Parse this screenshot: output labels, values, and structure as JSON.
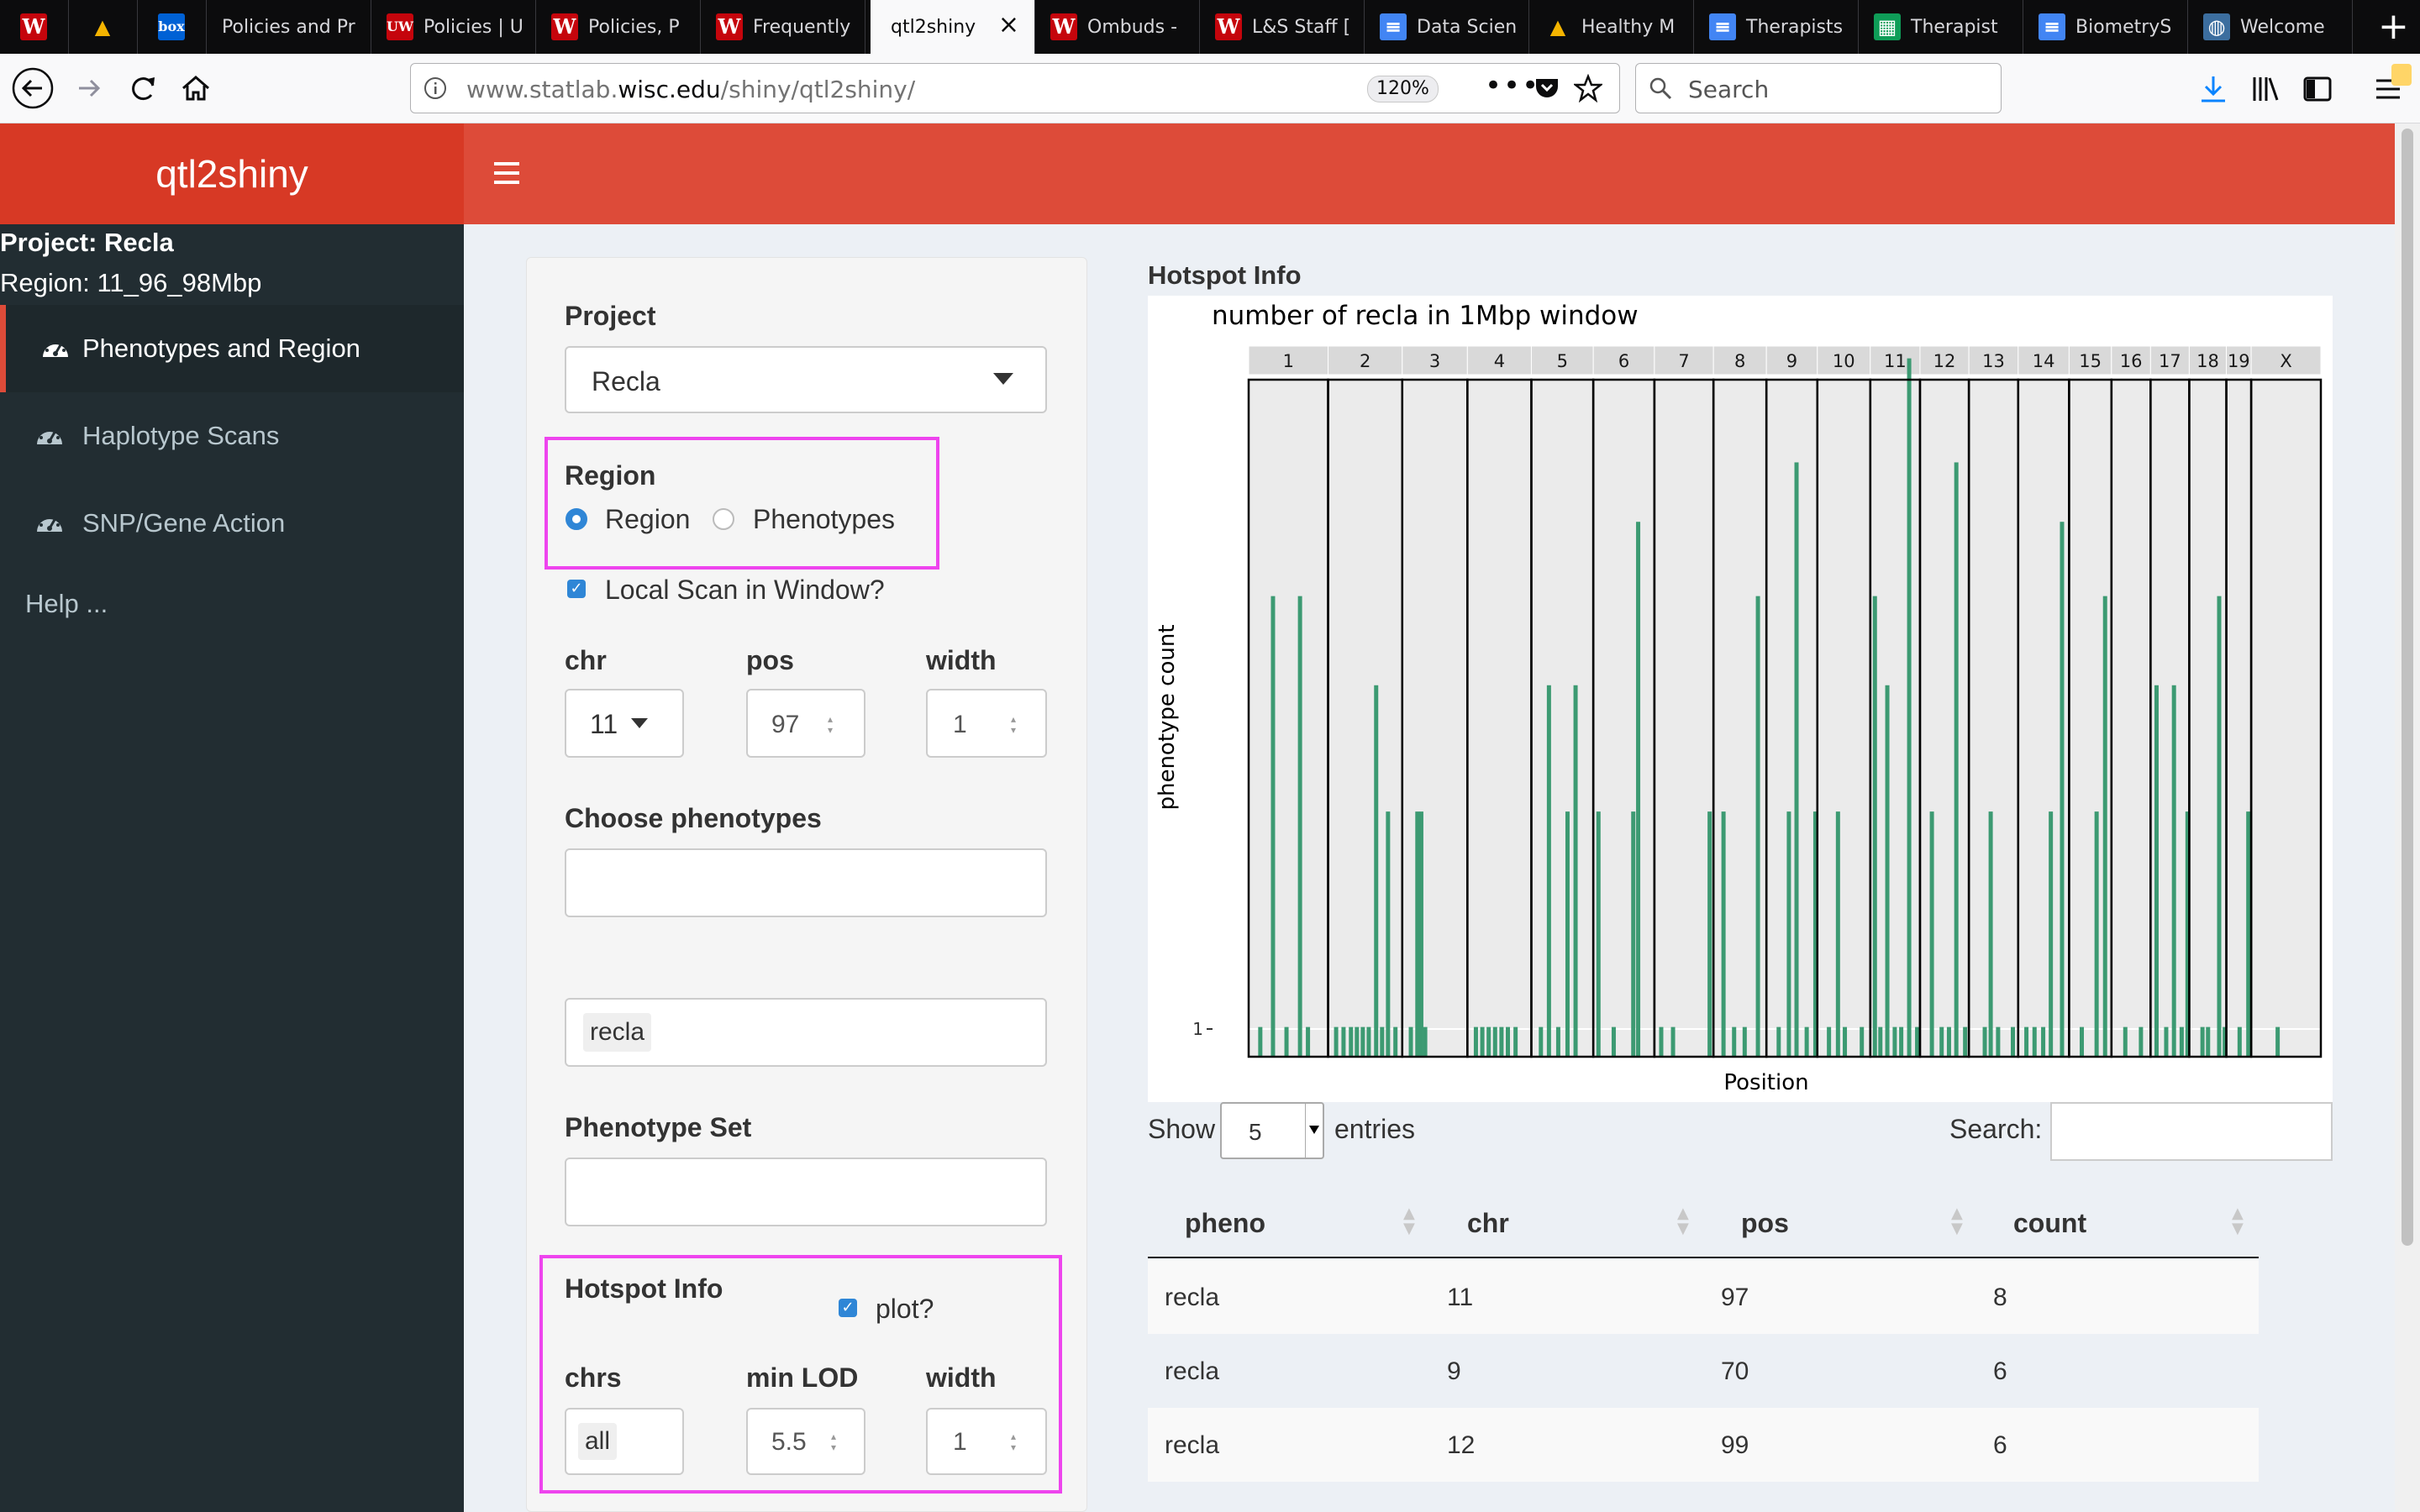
{
  "browser": {
    "tabs": [
      {
        "label": "",
        "fav": "W",
        "favbg": "#c5050c"
      },
      {
        "label": "",
        "fav": "▲",
        "favbg": "#0c0c0d",
        "favcolor": "#f4b400"
      },
      {
        "label": "",
        "fav": "box",
        "favbg": "#0061d5"
      },
      {
        "label": "Policies and Pr",
        "fav": "",
        "favbg": ""
      },
      {
        "label": "Policies | U",
        "fav": "UW",
        "favbg": "#c5050c"
      },
      {
        "label": "Policies, P",
        "fav": "W",
        "favbg": "#c5050c"
      },
      {
        "label": "Frequently",
        "fav": "W",
        "favbg": "#c5050c"
      },
      {
        "label": "qtl2shiny",
        "fav": "",
        "favbg": "",
        "active": true
      },
      {
        "label": "Ombuds -",
        "fav": "W",
        "favbg": "#c5050c"
      },
      {
        "label": "L&S Staff [",
        "fav": "W",
        "favbg": "#c5050c"
      },
      {
        "label": "Data Scien",
        "fav": "≡",
        "favbg": "#4285f4"
      },
      {
        "label": "Healthy M",
        "fav": "▲",
        "favbg": "#0c0c0d",
        "favcolor": "#f4b400"
      },
      {
        "label": "Therapists",
        "fav": "≡",
        "favbg": "#4285f4"
      },
      {
        "label": "Therapist",
        "fav": "▦",
        "favbg": "#0f9d58"
      },
      {
        "label": "BiometryS",
        "fav": "≡",
        "favbg": "#4285f4"
      },
      {
        "label": "Welcome",
        "fav": "◍",
        "favbg": "#3c6e9f"
      }
    ],
    "url_prefix": "www.statlab.",
    "url_domain": "wisc.edu",
    "url_path": "/shiny/qtl2shiny/",
    "zoom": "120%",
    "search_placeholder": "Search"
  },
  "app": {
    "logo": "qtl2shiny",
    "project_line": "Project: Recla",
    "region_line": "Region: 11_96_98Mbp",
    "menu": [
      {
        "label": "Phenotypes and Region",
        "active": true
      },
      {
        "label": "Haplotype Scans",
        "active": false
      },
      {
        "label": "SNP/Gene Action",
        "active": false
      }
    ],
    "help": "Help ..."
  },
  "controls": {
    "project_label": "Project",
    "project_value": "Recla",
    "region_label": "Region",
    "region_options": [
      {
        "label": "Region",
        "checked": true
      },
      {
        "label": "Phenotypes",
        "checked": false
      }
    ],
    "local_scan_label": "Local Scan in Window?",
    "chr_label": "chr",
    "chr_value": "11",
    "pos_label": "pos",
    "pos_value": "97",
    "width_label": "width",
    "width_value": "1",
    "choose_pheno_label": "Choose phenotypes",
    "pheno_tag": "recla",
    "pheno_set_label": "Phenotype Set",
    "hotspot_label": "Hotspot Info",
    "plot_label": "plot?",
    "chrs_label": "chrs",
    "chrs_value": "all",
    "minlod_label": "min LOD",
    "minlod_value": "5.5",
    "hwidth_label": "width",
    "hwidth_value": "1"
  },
  "hotspot": {
    "heading": "Hotspot Info",
    "show_label": "Show",
    "show_value": "5",
    "entries_label": "entries",
    "search_label": "Search:",
    "columns": [
      "pheno",
      "chr",
      "pos",
      "count"
    ],
    "rows": [
      [
        "recla",
        "11",
        "97",
        "8"
      ],
      [
        "recla",
        "9",
        "70",
        "6"
      ],
      [
        "recla",
        "12",
        "99",
        "6"
      ]
    ]
  },
  "chart_data": {
    "type": "bar",
    "title": "number of recla in 1Mbp window",
    "xlabel": "Position",
    "ylabel": "phenotype count",
    "y_ticks": [
      "1"
    ],
    "ylim": [
      0,
      9
    ],
    "panel_bg": "#ebebeb",
    "bar_color": "#3c9a72",
    "chromosomes": [
      "1",
      "2",
      "3",
      "4",
      "5",
      "6",
      "7",
      "8",
      "9",
      "10",
      "11",
      "12",
      "13",
      "14",
      "15",
      "16",
      "17",
      "18",
      "19",
      "X"
    ],
    "chr_widths": [
      195,
      182,
      160,
      157,
      152,
      150,
      145,
      130,
      125,
      130,
      122,
      120,
      121,
      125,
      104,
      96,
      95,
      91,
      61,
      171
    ],
    "bars": [
      {
        "chr": "1",
        "x": 0.12,
        "v": 0.4
      },
      {
        "chr": "1",
        "x": 0.28,
        "v": 6.2
      },
      {
        "chr": "1",
        "x": 0.45,
        "v": 0.4
      },
      {
        "chr": "1",
        "x": 0.62,
        "v": 6.2
      },
      {
        "chr": "1",
        "x": 0.72,
        "v": 0.4
      },
      {
        "chr": "2",
        "x": 0.08,
        "v": 0.4
      },
      {
        "chr": "2",
        "x": 0.18,
        "v": 0.4
      },
      {
        "chr": "2",
        "x": 0.28,
        "v": 0.4
      },
      {
        "chr": "2",
        "x": 0.36,
        "v": 0.4
      },
      {
        "chr": "2",
        "x": 0.44,
        "v": 0.4
      },
      {
        "chr": "2",
        "x": 0.52,
        "v": 0.4
      },
      {
        "chr": "2",
        "x": 0.62,
        "v": 5.0
      },
      {
        "chr": "2",
        "x": 0.7,
        "v": 0.4
      },
      {
        "chr": "2",
        "x": 0.78,
        "v": 3.3
      },
      {
        "chr": "2",
        "x": 0.88,
        "v": 0.4
      },
      {
        "chr": "3",
        "x": 0.1,
        "v": 0.4
      },
      {
        "chr": "3",
        "x": 0.2,
        "v": 3.3
      },
      {
        "chr": "3",
        "x": 0.26,
        "v": 3.3
      },
      {
        "chr": "3",
        "x": 0.32,
        "v": 0.4
      },
      {
        "chr": "4",
        "x": 0.1,
        "v": 0.4
      },
      {
        "chr": "4",
        "x": 0.2,
        "v": 0.4
      },
      {
        "chr": "4",
        "x": 0.3,
        "v": 0.4
      },
      {
        "chr": "4",
        "x": 0.4,
        "v": 0.4
      },
      {
        "chr": "4",
        "x": 0.5,
        "v": 0.4
      },
      {
        "chr": "4",
        "x": 0.6,
        "v": 0.4
      },
      {
        "chr": "4",
        "x": 0.72,
        "v": 0.4
      },
      {
        "chr": "5",
        "x": 0.12,
        "v": 0.4
      },
      {
        "chr": "5",
        "x": 0.25,
        "v": 5.0
      },
      {
        "chr": "5",
        "x": 0.4,
        "v": 0.4
      },
      {
        "chr": "5",
        "x": 0.55,
        "v": 3.3
      },
      {
        "chr": "5",
        "x": 0.68,
        "v": 5.0
      },
      {
        "chr": "6",
        "x": 0.05,
        "v": 3.3
      },
      {
        "chr": "6",
        "x": 0.3,
        "v": 0.4
      },
      {
        "chr": "6",
        "x": 0.62,
        "v": 3.3
      },
      {
        "chr": "6",
        "x": 0.7,
        "v": 7.2
      },
      {
        "chr": "7",
        "x": 0.08,
        "v": 0.4
      },
      {
        "chr": "7",
        "x": 0.28,
        "v": 0.4
      },
      {
        "chr": "7",
        "x": 0.9,
        "v": 3.3
      },
      {
        "chr": "8",
        "x": 0.15,
        "v": 3.3
      },
      {
        "chr": "8",
        "x": 0.35,
        "v": 0.4
      },
      {
        "chr": "8",
        "x": 0.55,
        "v": 0.4
      },
      {
        "chr": "8",
        "x": 0.8,
        "v": 6.2
      },
      {
        "chr": "9",
        "x": 0.2,
        "v": 0.4
      },
      {
        "chr": "9",
        "x": 0.4,
        "v": 3.3
      },
      {
        "chr": "9",
        "x": 0.55,
        "v": 8.0
      },
      {
        "chr": "9",
        "x": 0.75,
        "v": 0.4
      },
      {
        "chr": "9",
        "x": 0.92,
        "v": 3.3
      },
      {
        "chr": "10",
        "x": 0.18,
        "v": 0.4
      },
      {
        "chr": "10",
        "x": 0.35,
        "v": 3.3
      },
      {
        "chr": "10",
        "x": 0.48,
        "v": 0.4
      },
      {
        "chr": "10",
        "x": 0.8,
        "v": 0.4
      },
      {
        "chr": "11",
        "x": 0.05,
        "v": 6.2
      },
      {
        "chr": "11",
        "x": 0.16,
        "v": 0.4
      },
      {
        "chr": "11",
        "x": 0.3,
        "v": 5.0
      },
      {
        "chr": "11",
        "x": 0.45,
        "v": 0.4
      },
      {
        "chr": "11",
        "x": 0.58,
        "v": 0.4
      },
      {
        "chr": "11",
        "x": 0.74,
        "v": 9.4
      },
      {
        "chr": "11",
        "x": 0.9,
        "v": 0.4
      },
      {
        "chr": "12",
        "x": 0.2,
        "v": 3.3
      },
      {
        "chr": "12",
        "x": 0.4,
        "v": 0.4
      },
      {
        "chr": "12",
        "x": 0.55,
        "v": 0.4
      },
      {
        "chr": "12",
        "x": 0.7,
        "v": 8.0
      },
      {
        "chr": "12",
        "x": 0.88,
        "v": 0.4
      },
      {
        "chr": "13",
        "x": 0.28,
        "v": 0.4
      },
      {
        "chr": "13",
        "x": 0.4,
        "v": 3.3
      },
      {
        "chr": "13",
        "x": 0.55,
        "v": 0.4
      },
      {
        "chr": "13",
        "x": 0.85,
        "v": 0.4
      },
      {
        "chr": "14",
        "x": 0.12,
        "v": 0.4
      },
      {
        "chr": "14",
        "x": 0.28,
        "v": 0.4
      },
      {
        "chr": "14",
        "x": 0.45,
        "v": 0.4
      },
      {
        "chr": "14",
        "x": 0.6,
        "v": 3.3
      },
      {
        "chr": "14",
        "x": 0.82,
        "v": 7.2
      },
      {
        "chr": "15",
        "x": 0.25,
        "v": 0.4
      },
      {
        "chr": "15",
        "x": 0.6,
        "v": 3.3
      },
      {
        "chr": "15",
        "x": 0.8,
        "v": 6.2
      },
      {
        "chr": "16",
        "x": 0.3,
        "v": 0.4
      },
      {
        "chr": "16",
        "x": 0.7,
        "v": 0.4
      },
      {
        "chr": "17",
        "x": 0.1,
        "v": 5.0
      },
      {
        "chr": "17",
        "x": 0.35,
        "v": 0.4
      },
      {
        "chr": "17",
        "x": 0.55,
        "v": 5.0
      },
      {
        "chr": "17",
        "x": 0.75,
        "v": 0.4
      },
      {
        "chr": "17",
        "x": 0.9,
        "v": 3.3
      },
      {
        "chr": "18",
        "x": 0.3,
        "v": 0.4
      },
      {
        "chr": "18",
        "x": 0.45,
        "v": 0.4
      },
      {
        "chr": "18",
        "x": 0.75,
        "v": 6.2
      },
      {
        "chr": "18",
        "x": 0.9,
        "v": 0.4
      },
      {
        "chr": "19",
        "x": 0.45,
        "v": 0.4
      },
      {
        "chr": "19",
        "x": 0.8,
        "v": 3.3
      },
      {
        "chr": "X",
        "x": 0.35,
        "v": 0.4
      }
    ]
  }
}
